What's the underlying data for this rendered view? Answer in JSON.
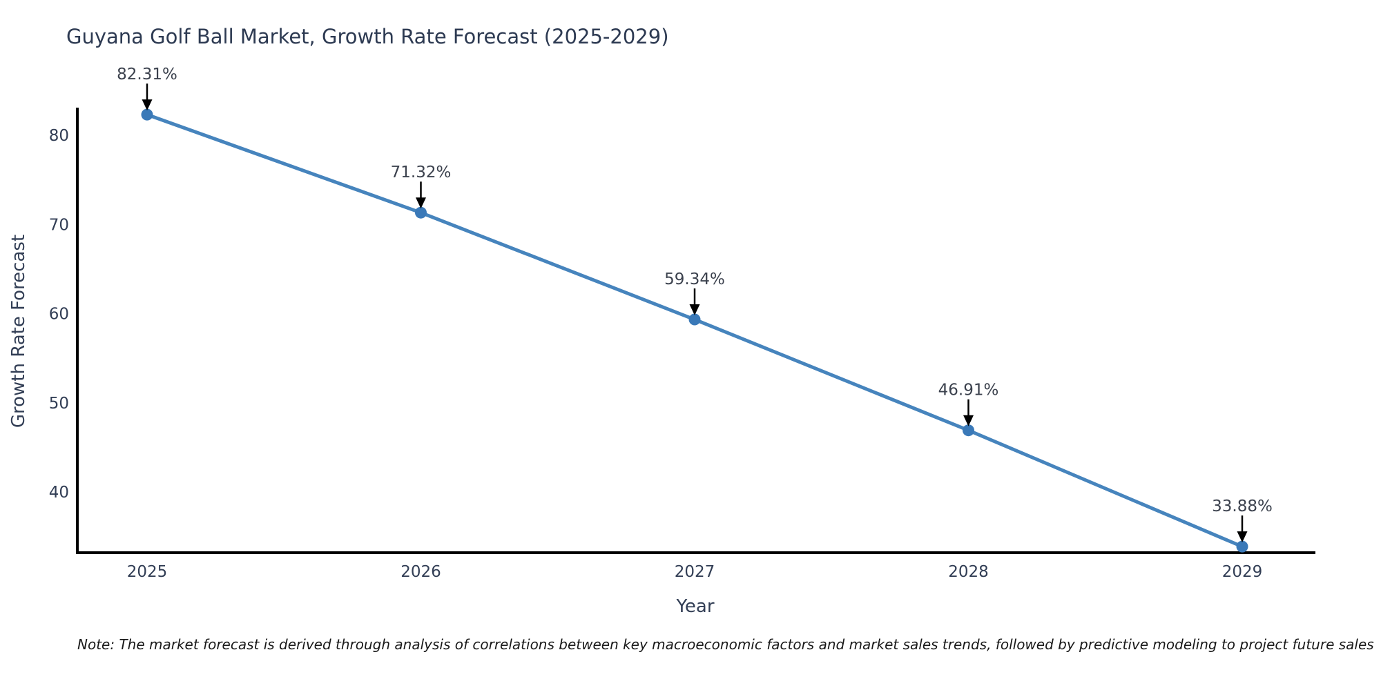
{
  "figure": {
    "note": "Note: The market forecast is derived through analysis of correlations between key macroeconomic factors and market sales trends, followed by predictive modeling to project future sales"
  },
  "chart_data": {
    "type": "line",
    "title": "Guyana Golf Ball Market, Growth Rate Forecast (2025-2029)",
    "xlabel": "Year",
    "ylabel": "Growth Rate Forecast",
    "x": [
      2025,
      2026,
      2027,
      2028,
      2029
    ],
    "series": [
      {
        "name": "Growth Rate Forecast",
        "values": [
          82.31,
          71.32,
          59.34,
          46.91,
          33.88
        ],
        "point_labels": [
          "82.31%",
          "71.32%",
          "59.34%",
          "46.91%",
          "33.88%"
        ]
      }
    ],
    "xticks": [
      "2025",
      "2026",
      "2027",
      "2028",
      "2029"
    ],
    "yticks": [
      40,
      50,
      60,
      70,
      80
    ],
    "xlim": [
      2024.75,
      2029.27
    ],
    "ylim": [
      33.2,
      82.9
    ],
    "grid": false,
    "legend": "none",
    "colors": {
      "line": "#4684bd",
      "marker": "#3a79b8",
      "spine": "#000000",
      "tick_text": "#323e55",
      "annotation_text": "#3b414d",
      "arrow": "#000000"
    }
  }
}
